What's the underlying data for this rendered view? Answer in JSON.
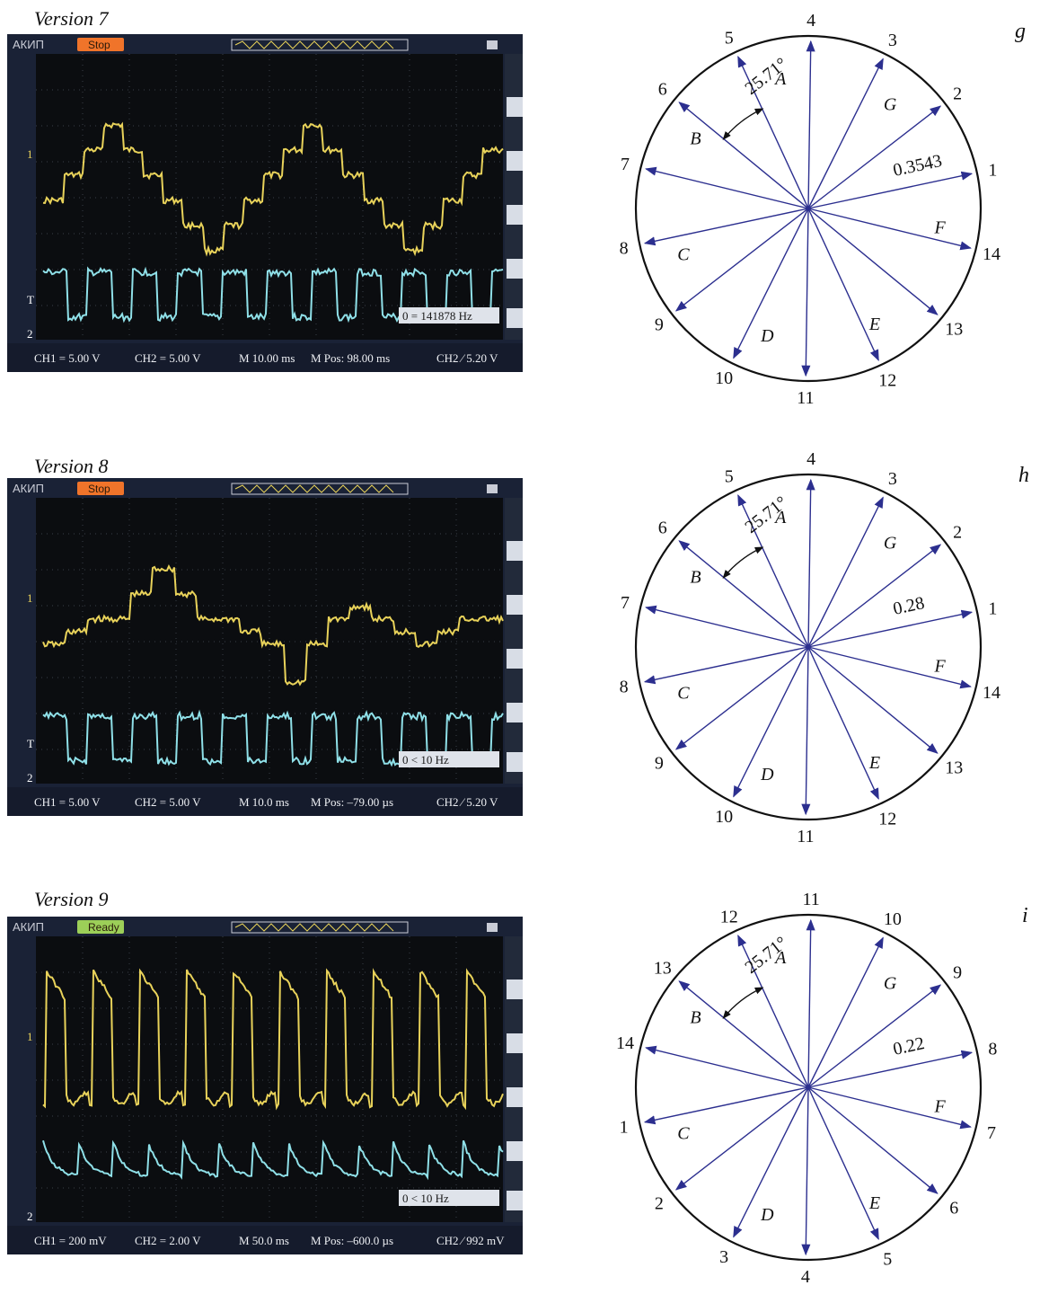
{
  "panels": [
    {
      "version_title": "Version 7",
      "scope": {
        "brand": "АКИП",
        "status": "Stop",
        "status_color": "#f0742a",
        "ch1_marker": "1",
        "trig_marker": "T",
        "ch2_marker": "2",
        "freq": "0 = 141878 Hz",
        "ch1_scale": "CH1 = 5.00 V",
        "ch2_scale": "CH2 = 5.00 V",
        "timebase": "M 10.00 ms",
        "mpos": "M Pos: 98.00 ms",
        "trigger": "CH2 ⁄ 5.20 V",
        "ch1_color": "#e8d25a",
        "ch2_color": "#8fe0e8",
        "ch1_wave": "staircase",
        "ch2_wave": "square"
      },
      "diagram": {
        "letter": "g",
        "angle_label": "25.71°",
        "radius_label": "0.3543",
        "vertex_labels": [
          "1",
          "2",
          "3",
          "4",
          "5",
          "6",
          "7",
          "8",
          "9",
          "10",
          "11",
          "12",
          "13",
          "14"
        ],
        "sector_labels": [
          "A",
          "B",
          "C",
          "D",
          "E",
          "F",
          "G"
        ]
      }
    },
    {
      "version_title": "Version 8",
      "scope": {
        "brand": "АКИП",
        "status": "Stop",
        "status_color": "#f0742a",
        "ch1_marker": "1",
        "trig_marker": "T",
        "ch2_marker": "2",
        "freq": "0 < 10 Hz",
        "ch1_scale": "CH1 = 5.00 V",
        "ch2_scale": "CH2 = 5.00 V",
        "timebase": "M 10.0 ms",
        "mpos": "M Pos: –79.00 µs",
        "trigger": "CH2 ⁄ 5.20 V",
        "ch1_color": "#e8d25a",
        "ch2_color": "#8fe0e8",
        "ch1_wave": "staircase2",
        "ch2_wave": "square"
      },
      "diagram": {
        "letter": "h",
        "angle_label": "25.71°",
        "radius_label": "0.28",
        "vertex_labels": [
          "1",
          "2",
          "3",
          "4",
          "5",
          "6",
          "7",
          "8",
          "9",
          "10",
          "11",
          "12",
          "13",
          "14"
        ],
        "sector_labels": [
          "A",
          "B",
          "C",
          "D",
          "E",
          "F",
          "G"
        ]
      }
    },
    {
      "version_title": "Version 9",
      "scope": {
        "brand": "АКИП",
        "status": "Ready",
        "status_color": "#9ccf58",
        "ch1_marker": "1",
        "trig_marker": "",
        "ch2_marker": "2",
        "freq": "0 < 10 Hz",
        "ch1_scale": "CH1 = 200 mV",
        "ch2_scale": "CH2 = 2.00 V",
        "timebase": "M 50.0 ms",
        "mpos": "M Pos: –600.0 µs",
        "trigger": "CH2 ⁄ 992 mV",
        "ch1_color": "#e8d25a",
        "ch2_color": "#8fe0e8",
        "ch1_wave": "pulse",
        "ch2_wave": "sawtooth"
      },
      "diagram": {
        "letter": "i",
        "angle_label": "25.71°",
        "radius_label": "0.22",
        "vertex_labels": [
          "8",
          "9",
          "10",
          "11",
          "12",
          "13",
          "14",
          "1",
          "2",
          "3",
          "4",
          "5",
          "6",
          "7"
        ],
        "sector_labels": [
          "A",
          "B",
          "C",
          "D",
          "E",
          "F",
          "G"
        ]
      }
    }
  ]
}
